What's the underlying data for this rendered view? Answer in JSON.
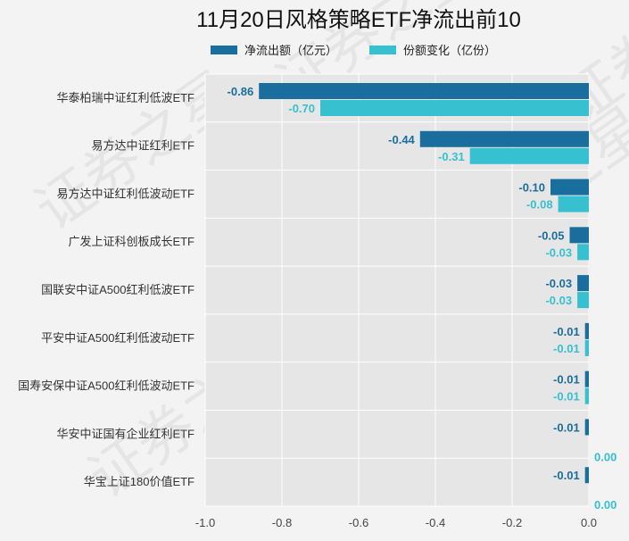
{
  "chart_data": {
    "type": "bar",
    "orientation": "horizontal",
    "title": "11月20日风格策略ETF净流出前10",
    "categories": [
      "华泰柏瑞中证红利低波ETF",
      "易方达中证红利ETF",
      "易方达中证红利低波动ETF",
      "广发上证科创板成长ETF",
      "国联安中证A500红利低波ETF",
      "平安中证A500红利低波动ETF",
      "国寿安保中证A500红利低波动ETF",
      "华安中证国有企业红利ETF",
      "华宝上证180价值ETF"
    ],
    "series": [
      {
        "name": "净流出额（亿元）",
        "color": "#1a6e9e",
        "values": [
          -0.86,
          -0.44,
          -0.1,
          -0.05,
          -0.03,
          -0.01,
          -0.01,
          -0.01,
          -0.01
        ],
        "labels": [
          "-0.86",
          "-0.44",
          "-0.10",
          "-0.05",
          "-0.03",
          "-0.01",
          "-0.01",
          "-0.01",
          "-0.01"
        ]
      },
      {
        "name": "份额变化（亿份）",
        "color": "#36c0d0",
        "values": [
          -0.7,
          -0.31,
          -0.08,
          -0.03,
          -0.03,
          -0.01,
          -0.01,
          0.0,
          0.0
        ],
        "labels": [
          "-0.70",
          "-0.31",
          "-0.08",
          "-0.03",
          "-0.03",
          "-0.01",
          "-0.01",
          "0.00",
          "0.00"
        ]
      }
    ],
    "xlim": [
      -1.0,
      0.0
    ],
    "xticks": [
      "-1.0",
      "-0.8",
      "-0.6",
      "-0.4",
      "-0.2",
      "0.0"
    ],
    "grid": true,
    "legend_position": "top-center",
    "watermark": "证券之星"
  }
}
